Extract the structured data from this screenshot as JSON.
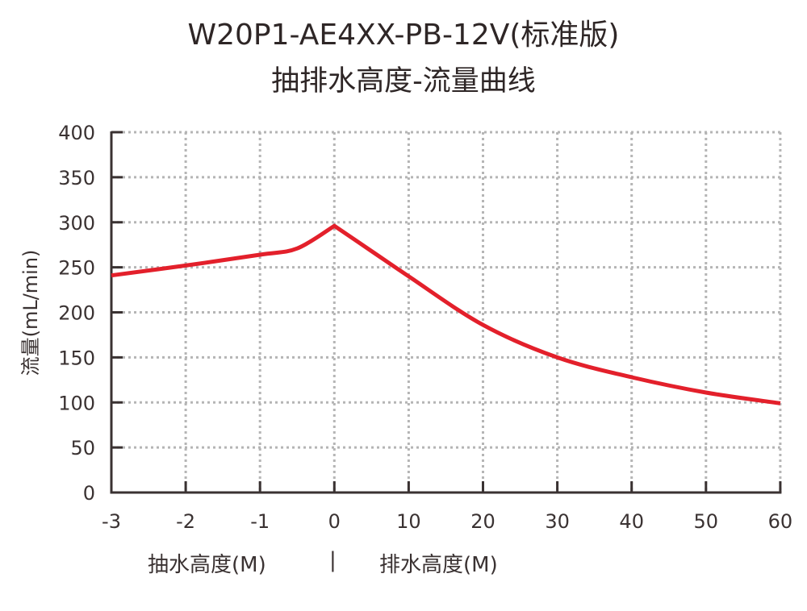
{
  "title": {
    "line1": "W20P1-AE4XX-PB-12V(标准版)",
    "line2": "抽排水高度-流量曲线"
  },
  "axes": {
    "ylabel": "流量(mL/min)",
    "xlabel_left": "抽水高度(M)",
    "xlabel_divider": "|",
    "xlabel_right": "排水高度(M)"
  },
  "colors": {
    "curve": "#e3202b",
    "axis": "#3a3232",
    "grid": "#b5b5b5",
    "text": "#3a3232"
  },
  "chart_data": {
    "type": "line",
    "title": "W20P1-AE4XX-PB-12V(标准版) 抽排水高度-流量曲线",
    "xlabel": "抽水高度(M) | 排水高度(M)",
    "ylabel": "流量(mL/min)",
    "x_tick_labels": [
      "-3",
      "-2",
      "-1",
      "0",
      "10",
      "20",
      "30",
      "40",
      "50",
      "60"
    ],
    "x_note": "X axis is piecewise: -3 to 0 = suction height (M), 0 to 60 = discharge height (M); ticks equally spaced",
    "y_ticks": [
      0,
      50,
      100,
      150,
      200,
      250,
      300,
      350,
      400
    ],
    "ylim": [
      0,
      400
    ],
    "grid": true,
    "legend": null,
    "series": [
      {
        "name": "流量",
        "color": "#e3202b",
        "points": [
          {
            "x": -3,
            "y": 241
          },
          {
            "x": -2,
            "y": 252
          },
          {
            "x": -1,
            "y": 264
          },
          {
            "x": -0.5,
            "y": 271
          },
          {
            "x": 0,
            "y": 296
          },
          {
            "x": 5,
            "y": 268
          },
          {
            "x": 10,
            "y": 240
          },
          {
            "x": 20,
            "y": 186
          },
          {
            "x": 30,
            "y": 150
          },
          {
            "x": 40,
            "y": 128
          },
          {
            "x": 50,
            "y": 111
          },
          {
            "x": 60,
            "y": 99
          }
        ]
      }
    ]
  }
}
